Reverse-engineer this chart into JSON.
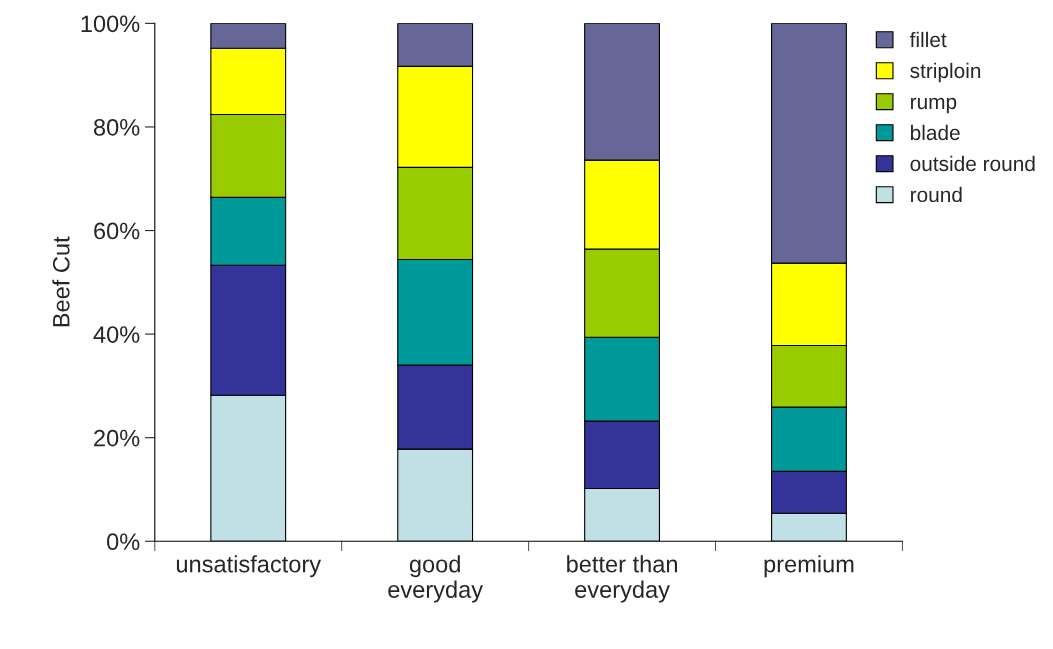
{
  "chart_data": {
    "type": "bar",
    "stacked": true,
    "ylabel": "Beef Cut",
    "categories": [
      "unsatisfactory",
      "good\neveryday",
      "better than\neveryday",
      "premium"
    ],
    "series": [
      {
        "name": "round",
        "color": "#c0e0e6",
        "values": [
          28.2,
          17.8,
          10.2,
          5.4
        ]
      },
      {
        "name": "outside round",
        "color": "#333399",
        "values": [
          25.1,
          16.2,
          13.0,
          8.1
        ]
      },
      {
        "name": "blade",
        "color": "#009999",
        "values": [
          13.1,
          20.4,
          16.2,
          12.4
        ]
      },
      {
        "name": "rump",
        "color": "#99cc00",
        "values": [
          16.0,
          17.8,
          17.0,
          11.9
        ]
      },
      {
        "name": "striploin",
        "color": "#ffff00",
        "values": [
          12.8,
          19.5,
          17.2,
          15.9
        ]
      },
      {
        "name": "fillet",
        "color": "#666699",
        "values": [
          4.8,
          8.3,
          26.4,
          46.3
        ]
      }
    ],
    "ylim": [
      0,
      100
    ],
    "yticks": [
      {
        "value": 0,
        "label": "0%"
      },
      {
        "value": 20,
        "label": "20%"
      },
      {
        "value": 40,
        "label": "40%"
      },
      {
        "value": 60,
        "label": "60%"
      },
      {
        "value": 80,
        "label": "80%"
      },
      {
        "value": 100,
        "label": "100%"
      }
    ],
    "grid": false,
    "legend": "right"
  }
}
